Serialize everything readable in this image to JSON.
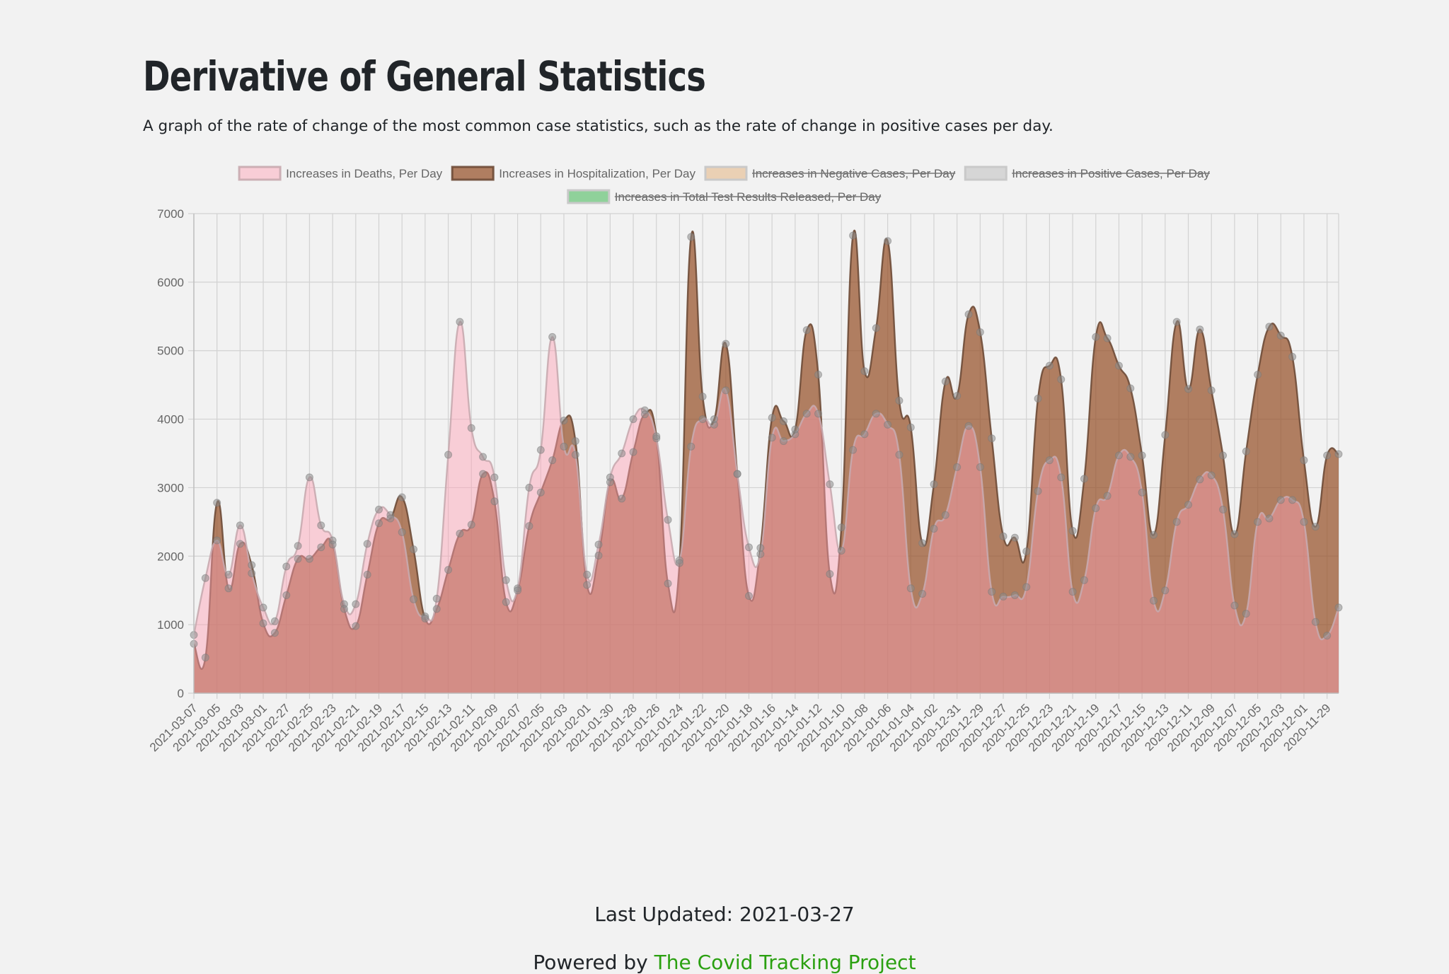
{
  "page": {
    "title": "Derivative of General Statistics",
    "subtitle": "A graph of the rate of change of the most common case statistics, such as the rate of change in positive cases per day.",
    "last_updated": "Last Updated: 2021-03-27",
    "powered_by_prefix": "Powered by ",
    "powered_by_link": "The Covid Tracking Project"
  },
  "colors": {
    "deaths_fill": "rgba(255,160,180,0.45)",
    "deaths_stroke": "rgba(200,170,175,0.9)",
    "hosp_fill": "rgba(150,80,40,0.72)",
    "hosp_stroke": "rgba(110,75,55,0.9)",
    "grid": "#d2d2d2",
    "point": "rgba(140,140,140,0.55)",
    "negative_swatch": "#ead0b4",
    "positive_swatch": "#d6d6d6",
    "tests_swatch": "#8fd19a"
  },
  "chart_data": {
    "type": "area",
    "ylim": [
      0,
      7000
    ],
    "yticks": [
      0,
      1000,
      2000,
      3000,
      4000,
      5000,
      6000,
      7000
    ],
    "legend_position": "top",
    "grid": true,
    "legend": [
      {
        "label": "Increases in Deaths, Per Day",
        "hidden": false,
        "swatch": "deaths"
      },
      {
        "label": "Increases in Hospitalization, Per Day",
        "hidden": false,
        "swatch": "hosp"
      },
      {
        "label": "Increases in Negative Cases, Per Day",
        "hidden": true,
        "swatch": "negative"
      },
      {
        "label": "Increases in Positive Cases, Per Day",
        "hidden": true,
        "swatch": "positive"
      },
      {
        "label": "Increases in Total Test Results Released, Per Day",
        "hidden": true,
        "swatch": "tests"
      }
    ],
    "x": [
      "2021-03-07",
      "2021-03-06",
      "2021-03-05",
      "2021-03-04",
      "2021-03-03",
      "2021-03-02",
      "2021-03-01",
      "2021-02-28",
      "2021-02-27",
      "2021-02-26",
      "2021-02-25",
      "2021-02-24",
      "2021-02-23",
      "2021-02-22",
      "2021-02-21",
      "2021-02-20",
      "2021-02-19",
      "2021-02-18",
      "2021-02-17",
      "2021-02-16",
      "2021-02-15",
      "2021-02-14",
      "2021-02-13",
      "2021-02-12",
      "2021-02-11",
      "2021-02-10",
      "2021-02-09",
      "2021-02-08",
      "2021-02-07",
      "2021-02-06",
      "2021-02-05",
      "2021-02-04",
      "2021-02-03",
      "2021-02-02",
      "2021-02-01",
      "2021-01-31",
      "2021-01-30",
      "2021-01-29",
      "2021-01-28",
      "2021-01-27",
      "2021-01-26",
      "2021-01-25",
      "2021-01-24",
      "2021-01-23",
      "2021-01-22",
      "2021-01-21",
      "2021-01-20",
      "2021-01-19",
      "2021-01-18",
      "2021-01-17",
      "2021-01-16",
      "2021-01-15",
      "2021-01-14",
      "2021-01-13",
      "2021-01-12",
      "2021-01-11",
      "2021-01-10",
      "2021-01-09",
      "2021-01-08",
      "2021-01-07",
      "2021-01-06",
      "2021-01-05",
      "2021-01-04",
      "2021-01-03",
      "2021-01-02",
      "2021-01-01",
      "2020-12-31",
      "2020-12-30",
      "2020-12-29",
      "2020-12-28",
      "2020-12-27",
      "2020-12-26",
      "2020-12-25",
      "2020-12-24",
      "2020-12-23",
      "2020-12-22",
      "2020-12-21",
      "2020-12-20",
      "2020-12-19",
      "2020-12-18",
      "2020-12-17",
      "2020-12-16",
      "2020-12-15",
      "2020-12-14",
      "2020-12-13",
      "2020-12-12",
      "2020-12-11",
      "2020-12-10",
      "2020-12-09",
      "2020-12-08",
      "2020-12-07",
      "2020-12-06",
      "2020-12-05",
      "2020-12-04",
      "2020-12-03",
      "2020-12-02",
      "2020-12-01",
      "2020-11-30",
      "2020-11-29",
      "2020-11-28"
    ],
    "series": [
      {
        "name": "Increases in Deaths, Per Day",
        "values": [
          850,
          1680,
          2230,
          1730,
          2450,
          1750,
          1250,
          1050,
          1850,
          2150,
          3150,
          2450,
          2230,
          1300,
          1300,
          2180,
          2680,
          2600,
          2350,
          1370,
          1120,
          1380,
          3480,
          5420,
          3870,
          3450,
          3150,
          1650,
          1530,
          3000,
          3550,
          5200,
          3600,
          3480,
          1730,
          2170,
          3150,
          3500,
          4000,
          4130,
          3720,
          2530,
          1940,
          3600,
          4000,
          3920,
          4420,
          3200,
          2130,
          2030,
          3730,
          3680,
          3780,
          4080,
          4080,
          3050,
          2080,
          3550,
          3780,
          4080,
          3920,
          3480,
          1530,
          1450,
          2400,
          2600,
          3300,
          3900,
          3300,
          1480,
          1410,
          1430,
          1550,
          2950,
          3400,
          3150,
          1480,
          1650,
          2700,
          2880,
          3470,
          3450,
          2930,
          1350,
          1500,
          2500,
          2750,
          3120,
          3180,
          2680,
          1280,
          1160,
          2500,
          2550,
          2820,
          2820,
          2500,
          1040,
          840,
          1250
        ]
      },
      {
        "name": "Increases in Hospitalization, Per Day",
        "values": [
          720,
          520,
          2780,
          1530,
          2180,
          1870,
          1020,
          880,
          1430,
          1960,
          1960,
          2130,
          2170,
          1230,
          980,
          1730,
          2480,
          2550,
          2860,
          2100,
          1090,
          1230,
          1800,
          2330,
          2460,
          3200,
          2800,
          1330,
          1500,
          2440,
          2930,
          3400,
          3980,
          3680,
          1580,
          2010,
          3080,
          2840,
          3520,
          4070,
          3750,
          1600,
          1900,
          6660,
          4330,
          4000,
          5100,
          3200,
          1420,
          2120,
          4020,
          3970,
          3850,
          5300,
          4650,
          1740,
          2420,
          6680,
          4700,
          5330,
          6600,
          4270,
          3880,
          2190,
          3050,
          4550,
          4340,
          5530,
          5270,
          3720,
          2290,
          2270,
          2070,
          4300,
          4780,
          4580,
          2370,
          3130,
          5200,
          5180,
          4780,
          4450,
          3470,
          2310,
          3770,
          5420,
          4440,
          5310,
          4420,
          3470,
          2320,
          3530,
          4650,
          5350,
          5220,
          4910,
          3400,
          2430,
          3470,
          3490
        ]
      }
    ]
  }
}
